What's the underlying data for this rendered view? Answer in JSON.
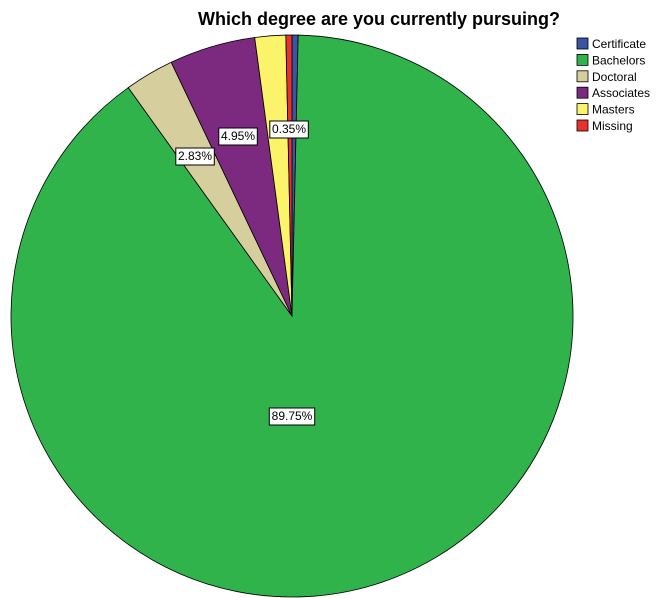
{
  "chart_data": {
    "type": "pie",
    "title": "Which degree are you currently pursuing?",
    "start_angle_deg": 0,
    "direction": "clockwise",
    "slices": [
      {
        "label": "Certificate",
        "value": 0.35,
        "color": "#3a55a5",
        "data_label": ""
      },
      {
        "label": "Bachelors",
        "value": 89.75,
        "color": "#2fb34a",
        "data_label": "89.75%"
      },
      {
        "label": "Doctoral",
        "value": 2.83,
        "color": "#d6cf9d",
        "data_label": "2.83%"
      },
      {
        "label": "Associates",
        "value": 4.95,
        "color": "#7b2a7f",
        "data_label": "4.95%"
      },
      {
        "label": "Masters",
        "value": 1.77,
        "color": "#fbf46a",
        "data_label": ""
      },
      {
        "label": "Missing",
        "value": 0.35,
        "color": "#e8322e",
        "data_label": "0.35%"
      }
    ],
    "legend": {
      "position": "top-right",
      "entries": [
        "Certificate",
        "Bachelors",
        "Doctoral",
        "Associates",
        "Masters",
        "Missing"
      ]
    }
  }
}
